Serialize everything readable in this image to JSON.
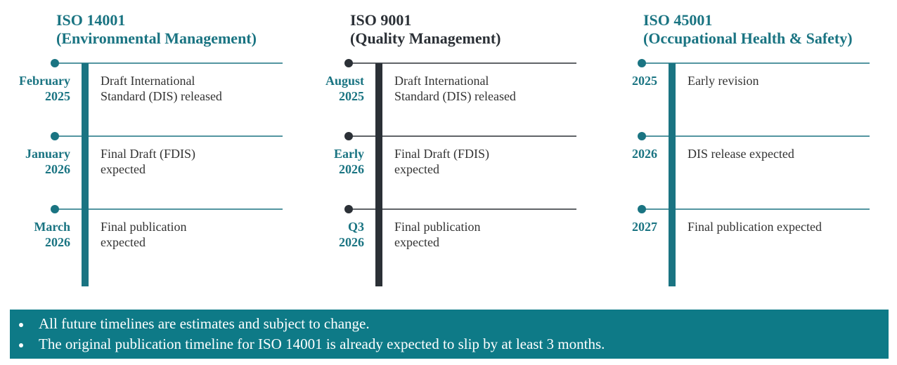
{
  "columns": [
    {
      "title": [
        "ISO 14001",
        "(Environmental Management)"
      ],
      "entries": [
        {
          "date": [
            "February",
            "2025"
          ],
          "text": [
            "Draft International",
            "Standard (DIS) released"
          ]
        },
        {
          "date": [
            "January",
            "2026"
          ],
          "text": [
            "Final Draft (FDIS)",
            "expected"
          ]
        },
        {
          "date": [
            "March",
            "2026"
          ],
          "text": [
            "Final publication",
            "expected"
          ]
        }
      ]
    },
    {
      "title": [
        "ISO 9001",
        "(Quality Management)"
      ],
      "entries": [
        {
          "date": [
            "August",
            "2025"
          ],
          "text": [
            "Draft International",
            "Standard (DIS) released"
          ]
        },
        {
          "date": [
            "Early",
            "2026"
          ],
          "text": [
            "Final Draft (FDIS)",
            "expected"
          ]
        },
        {
          "date": [
            "Q3",
            "2026"
          ],
          "text": [
            "Final publication",
            "expected"
          ]
        }
      ]
    },
    {
      "title": [
        "ISO 45001",
        "(Occupational Health & Safety)"
      ],
      "entries": [
        {
          "date": [
            "2025"
          ],
          "text": [
            "Early revision"
          ]
        },
        {
          "date": [
            "2026"
          ],
          "text": [
            "DIS release expected"
          ]
        },
        {
          "date": [
            "2027"
          ],
          "text": [
            "Final publication expected"
          ]
        }
      ]
    }
  ],
  "notes": [
    "All future timelines are estimates and subject to change.",
    "The original publication timeline for ISO 14001 is already expected to slip by at least 3 months."
  ]
}
